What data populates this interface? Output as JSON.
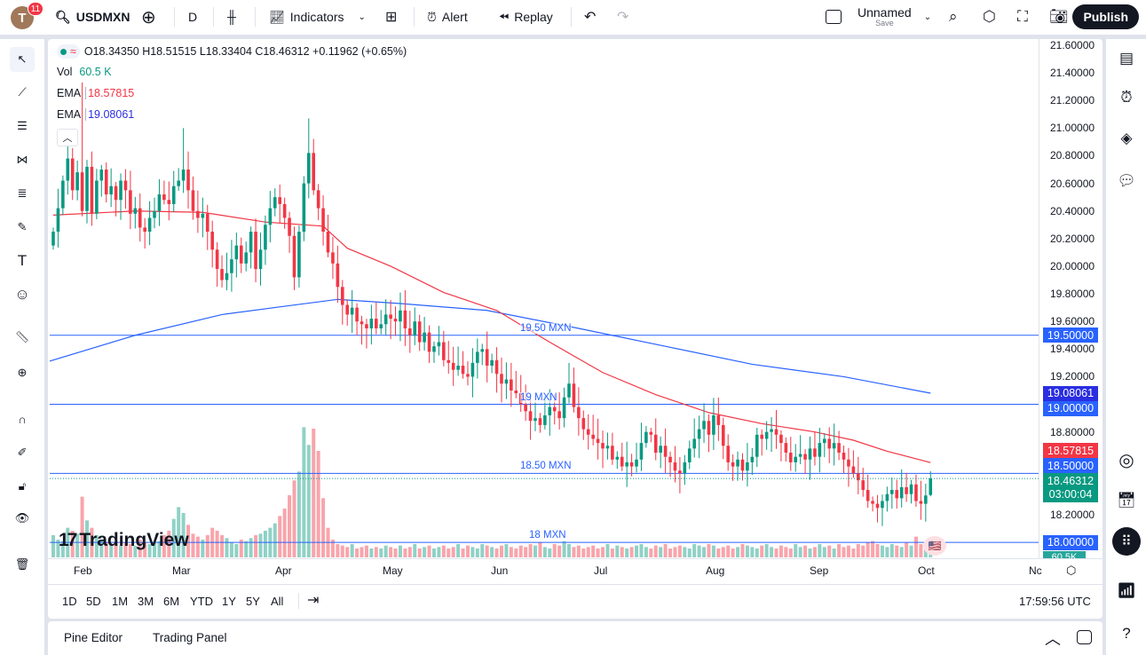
{
  "header": {
    "avatar_letter": "T",
    "notifications": "11",
    "symbol": "USDMXN",
    "interval": "D",
    "indicators_label": "Indicators",
    "alert_label": "Alert",
    "replay_label": "Replay",
    "layout_name": "Unnamed",
    "layout_save": "Save",
    "publish_label": "Publish"
  },
  "legend": {
    "ohlc": "O18.34350 H18.51515 L18.33404 C18.46312 +0.11962 (+0.65%)",
    "vol_label": "Vol",
    "vol_value": "60.5 K",
    "ema1_label": "EMA",
    "ema1_value": "18.57815",
    "ema2_label": "EMA",
    "ema2_value": "19.08061"
  },
  "colors": {
    "up": "#089981",
    "down": "#f23645",
    "ema_fast": "#f23645",
    "ema_slow": "#2962ff",
    "hline": "#2962ff"
  },
  "price_axis": {
    "ticks": [
      "21.60000",
      "21.40000",
      "21.20000",
      "21.00000",
      "20.80000",
      "20.60000",
      "20.40000",
      "20.20000",
      "20.00000",
      "19.80000",
      "19.60000",
      "19.40000",
      "19.20000",
      "18.80000",
      "18.20000"
    ],
    "labels": [
      {
        "text": "19.50000",
        "price": 19.5,
        "color": "#2962ff"
      },
      {
        "text": "19.08061",
        "price": 19.08061,
        "color": "#2a2ee0"
      },
      {
        "text": "19.00000",
        "price": 19.0,
        "color": "#2962ff"
      },
      {
        "text": "18.57815",
        "price": 18.57815,
        "color": "#f23645"
      },
      {
        "text": "18.50000",
        "price": 18.5,
        "color": "#2962ff"
      },
      {
        "text": "18.00000",
        "price": 18.0,
        "color": "#2962ff"
      }
    ],
    "last_price": "18.46312",
    "countdown": "03:00:04",
    "vol_label": "60.5K"
  },
  "hlines": [
    {
      "price": 19.5,
      "label": "19.50 MXN"
    },
    {
      "price": 19.0,
      "label": "19 MXN"
    },
    {
      "price": 18.5,
      "label": "18.50 MXN"
    },
    {
      "price": 18.0,
      "label": "18 MXN"
    }
  ],
  "time_axis": [
    "Feb",
    "Mar",
    "Apr",
    "May",
    "Jun",
    "Jul",
    "Aug",
    "Sep",
    "Oct",
    "Nc"
  ],
  "ranges": [
    "1D",
    "5D",
    "1M",
    "3M",
    "6M",
    "YTD",
    "1Y",
    "5Y",
    "All"
  ],
  "clock": "17:59:56 UTC",
  "bottom_tabs": [
    "Pine Editor",
    "Trading Panel"
  ],
  "watermark": "TradingView",
  "chart_data": {
    "type": "candlestick",
    "last_candle": {
      "open": 18.3435,
      "high": 18.51515,
      "low": 18.33404,
      "close": 18.46312
    },
    "closes": [
      20.25,
      20.42,
      20.62,
      20.78,
      20.55,
      20.68,
      20.4,
      20.72,
      20.38,
      20.62,
      20.7,
      20.52,
      20.58,
      20.48,
      20.62,
      20.55,
      20.38,
      20.42,
      20.28,
      20.25,
      20.35,
      20.4,
      20.52,
      20.48,
      20.45,
      20.58,
      20.62,
      20.7,
      20.55,
      20.4,
      20.35,
      20.38,
      20.25,
      20.12,
      19.98,
      19.9,
      19.95,
      20.05,
      20.15,
      20.02,
      20.1,
      20.25,
      19.98,
      20.12,
      20.3,
      20.42,
      20.5,
      20.45,
      20.35,
      20.22,
      19.92,
      20.25,
      20.6,
      20.82,
      20.55,
      20.42,
      20.25,
      20.1,
      20.02,
      19.85,
      19.72,
      19.65,
      19.7,
      19.6,
      19.58,
      19.55,
      19.62,
      19.55,
      19.58,
      19.65,
      19.62,
      19.6,
      19.68,
      19.55,
      19.5,
      19.6,
      19.45,
      19.52,
      19.38,
      19.42,
      19.45,
      19.32,
      19.3,
      19.25,
      19.28,
      19.22,
      19.2,
      19.3,
      19.38,
      19.4,
      19.28,
      19.32,
      19.22,
      19.15,
      19.18,
      19.1,
      19.08,
      19.0,
      18.95,
      18.88,
      18.9,
      18.85,
      18.92,
      18.98,
      18.95,
      18.9,
      19.05,
      19.15,
      18.98,
      18.9,
      18.82,
      18.78,
      18.75,
      18.72,
      18.68,
      18.7,
      18.6,
      18.62,
      18.55,
      18.58,
      18.55,
      18.6,
      18.72,
      18.8,
      18.78,
      18.65,
      18.7,
      18.62,
      18.58,
      18.52,
      18.5,
      18.58,
      18.68,
      18.75,
      18.82,
      18.88,
      18.78,
      18.92,
      18.85,
      18.7,
      18.58,
      18.55,
      18.6,
      18.52,
      18.58,
      18.62,
      18.78,
      18.75,
      18.8,
      18.82,
      18.78,
      18.72,
      18.65,
      18.58,
      18.62,
      18.64,
      18.6,
      18.68,
      18.62,
      18.72,
      18.75,
      18.68,
      18.72,
      18.65,
      18.6,
      18.55,
      18.5,
      18.45,
      18.38,
      18.3,
      18.28,
      18.25,
      18.3,
      18.35,
      18.38,
      18.32,
      18.4,
      18.35,
      18.42,
      18.3,
      18.28,
      18.34,
      18.46312
    ],
    "volumes_k": [
      150,
      120,
      110,
      200,
      180,
      160,
      410,
      250,
      200,
      150,
      120,
      100,
      90,
      110,
      80,
      100,
      90,
      80,
      120,
      100,
      90,
      100,
      110,
      150,
      180,
      260,
      340,
      300,
      220,
      160,
      140,
      120,
      150,
      200,
      180,
      150,
      130,
      100,
      90,
      120,
      110,
      130,
      150,
      160,
      180,
      200,
      230,
      280,
      330,
      420,
      520,
      580,
      880,
      760,
      870,
      720,
      400,
      200,
      120,
      90,
      80,
      70,
      90,
      60,
      70,
      80,
      60,
      70,
      60,
      80,
      70,
      60,
      80,
      60,
      70,
      90,
      60,
      70,
      80,
      60,
      70,
      80,
      60,
      70,
      90,
      60,
      80,
      70,
      60,
      90,
      80,
      70,
      60,
      80,
      90,
      70,
      60,
      80,
      70,
      90,
      80,
      100,
      70,
      60,
      90,
      80,
      110,
      90,
      70,
      80,
      60,
      70,
      80,
      60,
      70,
      90,
      60,
      80,
      70,
      60,
      70,
      80,
      90,
      70,
      60,
      80,
      70,
      90,
      60,
      70,
      80,
      70,
      60,
      90,
      80,
      70,
      90,
      80,
      60,
      70,
      80,
      60,
      70,
      90,
      80,
      70,
      60,
      80,
      90,
      70,
      60,
      80,
      70,
      60,
      90,
      70,
      80,
      60,
      70,
      90,
      70,
      80,
      60,
      90,
      70,
      80,
      60,
      90,
      80,
      100,
      110,
      90,
      80,
      70,
      90,
      80,
      70,
      100,
      80,
      140,
      90,
      80,
      60.5
    ],
    "ema_fast": [
      [
        0,
        20.37
      ],
      [
        17,
        20.4
      ],
      [
        31,
        20.39
      ],
      [
        44,
        20.32
      ],
      [
        56,
        20.29
      ],
      [
        61,
        20.13
      ],
      [
        70,
        20.0
      ],
      [
        81,
        19.81
      ],
      [
        92,
        19.68
      ],
      [
        103,
        19.45
      ],
      [
        114,
        19.23
      ],
      [
        125,
        19.07
      ],
      [
        136,
        18.94
      ],
      [
        147,
        18.86
      ],
      [
        158,
        18.8
      ],
      [
        166,
        18.74
      ],
      [
        173,
        18.66
      ],
      [
        182,
        18.57815
      ]
    ],
    "ema_slow": [
      [
        -1,
        19.31
      ],
      [
        17,
        19.5
      ],
      [
        35,
        19.65
      ],
      [
        48,
        19.71
      ],
      [
        59,
        19.76
      ],
      [
        72,
        19.73
      ],
      [
        90,
        19.68
      ],
      [
        109,
        19.55
      ],
      [
        127,
        19.42
      ],
      [
        145,
        19.29
      ],
      [
        164,
        19.2
      ],
      [
        182,
        19.08061
      ]
    ],
    "ylim": [
      17.95,
      21.65
    ]
  }
}
